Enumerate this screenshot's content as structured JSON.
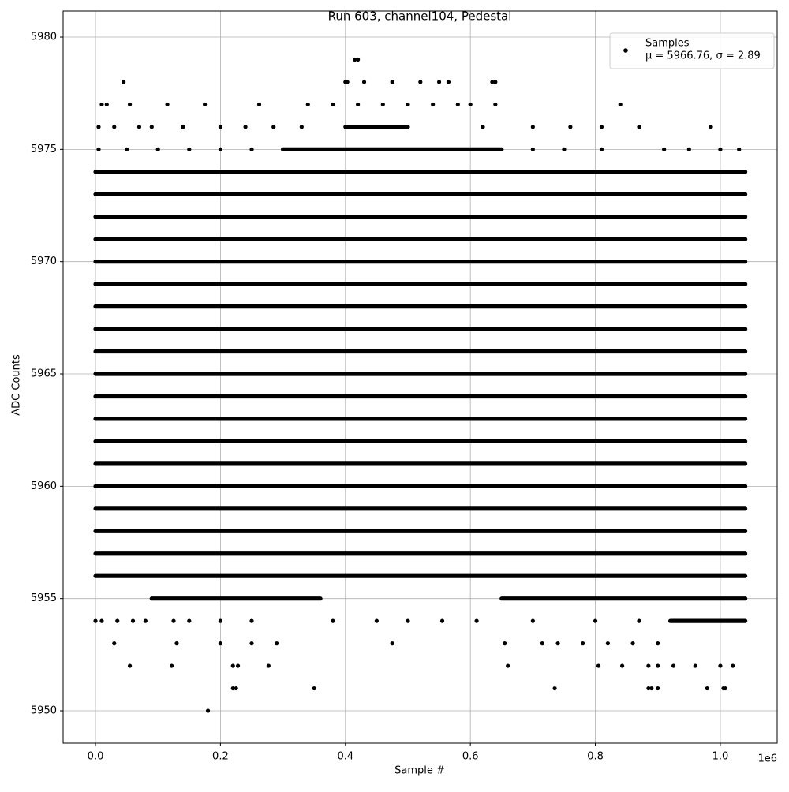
{
  "chart_data": {
    "type": "scatter",
    "title": "Run 603, channel104, Pedestal",
    "x_label": "Sample #",
    "y_label": "ADC Counts",
    "x_offset_label": "1e6",
    "xlim": [
      -51800,
      1091000
    ],
    "ylim": [
      5948.56,
      5981.16
    ],
    "xticks": [
      {
        "value": 0,
        "label": "0.0"
      },
      {
        "value": 200000,
        "label": "0.2"
      },
      {
        "value": 400000,
        "label": "0.4"
      },
      {
        "value": 600000,
        "label": "0.6"
      },
      {
        "value": 800000,
        "label": "0.8"
      },
      {
        "value": 1000000,
        "label": "1.0"
      }
    ],
    "yticks": [
      5950,
      5955,
      5960,
      5965,
      5970,
      5975,
      5980
    ],
    "grid": true,
    "legend": "upper right",
    "series": [
      {
        "name": "Samples",
        "stats": "μ = 5966.76, σ = 2.89",
        "color": "#000000",
        "x": [
          0,
          1040000,
          null,
          0,
          1040000,
          null,
          0,
          1040000,
          null,
          0,
          1040000,
          null,
          0,
          1040000,
          null,
          0,
          1040000,
          null,
          0,
          1040000,
          null,
          0,
          1040000,
          null,
          0,
          1040000,
          null,
          0,
          1040000,
          null,
          0,
          1040000,
          null,
          0,
          1040000,
          null,
          0,
          1040000,
          null,
          0,
          1040000,
          null,
          0,
          1040000,
          null,
          0,
          1040000,
          null,
          0,
          1040000,
          null,
          0,
          1040000,
          null,
          0,
          1040000,
          null,
          90000,
          360000,
          null,
          650000,
          1040000,
          null,
          300000,
          650000,
          null,
          400000,
          500000,
          null,
          920000,
          1040000,
          null,
          415000,
          null,
          420000,
          null,
          45000,
          null,
          400000,
          null,
          403000,
          null,
          430000,
          null,
          475000,
          null,
          520000,
          null,
          550000,
          null,
          565000,
          null,
          635000,
          null,
          640000,
          null,
          10000,
          null,
          18000,
          null,
          55000,
          null,
          115000,
          null,
          175000,
          null,
          262000,
          null,
          340000,
          null,
          380000,
          null,
          420000,
          null,
          460000,
          null,
          500000,
          null,
          540000,
          null,
          580000,
          null,
          600000,
          null,
          640000,
          null,
          840000,
          null,
          5000,
          null,
          30000,
          null,
          70000,
          null,
          90000,
          null,
          140000,
          null,
          200000,
          null,
          240000,
          null,
          285000,
          null,
          330000,
          null,
          620000,
          null,
          700000,
          null,
          760000,
          null,
          810000,
          null,
          870000,
          null,
          985000,
          null,
          5000,
          null,
          50000,
          null,
          100000,
          null,
          150000,
          null,
          200000,
          null,
          250000,
          null,
          700000,
          null,
          750000,
          null,
          810000,
          null,
          910000,
          null,
          950000,
          null,
          1000000,
          null,
          1030000,
          null,
          0,
          null,
          10000,
          null,
          35000,
          null,
          60000,
          null,
          80000,
          null,
          125000,
          null,
          150000,
          null,
          200000,
          null,
          250000,
          null,
          380000,
          null,
          450000,
          null,
          500000,
          null,
          555000,
          null,
          610000,
          null,
          700000,
          null,
          800000,
          null,
          870000,
          null,
          30000,
          null,
          130000,
          null,
          200000,
          null,
          250000,
          null,
          290000,
          null,
          475000,
          null,
          655000,
          null,
          715000,
          null,
          740000,
          null,
          780000,
          null,
          820000,
          null,
          860000,
          null,
          900000,
          null,
          55000,
          null,
          122000,
          null,
          220000,
          null,
          228000,
          null,
          277000,
          null,
          660000,
          null,
          805000,
          null,
          843000,
          null,
          885000,
          null,
          900000,
          null,
          925000,
          null,
          960000,
          null,
          1000000,
          null,
          1020000,
          null,
          220000,
          null,
          225000,
          null,
          350000,
          null,
          735000,
          null,
          885000,
          null,
          890000,
          null,
          900000,
          null,
          979000,
          null,
          1005000,
          null,
          1008000,
          null,
          180000
        ],
        "values": [
          5956,
          5956,
          null,
          5957,
          5957,
          null,
          5958,
          5958,
          null,
          5959,
          5959,
          null,
          5960,
          5960,
          null,
          5961,
          5961,
          null,
          5962,
          5962,
          null,
          5963,
          5963,
          null,
          5964,
          5964,
          null,
          5965,
          5965,
          null,
          5966,
          5966,
          null,
          5967,
          5967,
          null,
          5968,
          5968,
          null,
          5969,
          5969,
          null,
          5970,
          5970,
          null,
          5971,
          5971,
          null,
          5972,
          5972,
          null,
          5973,
          5973,
          null,
          5974,
          5974,
          null,
          5955,
          5955,
          null,
          5955,
          5955,
          null,
          5975,
          5975,
          null,
          5976,
          5976,
          null,
          5954,
          5954,
          null,
          5979,
          null,
          5979,
          null,
          5978,
          null,
          5978,
          null,
          5978,
          null,
          5978,
          null,
          5978,
          null,
          5978,
          null,
          5978,
          null,
          5978,
          null,
          5978,
          null,
          5978,
          null,
          5977,
          null,
          5977,
          null,
          5977,
          null,
          5977,
          null,
          5977,
          null,
          5977,
          null,
          5977,
          null,
          5977,
          null,
          5977,
          null,
          5977,
          null,
          5977,
          null,
          5977,
          null,
          5977,
          null,
          5977,
          null,
          5977,
          null,
          5977,
          null,
          5976,
          null,
          5976,
          null,
          5976,
          null,
          5976,
          null,
          5976,
          null,
          5976,
          null,
          5976,
          null,
          5976,
          null,
          5976,
          null,
          5976,
          null,
          5976,
          null,
          5976,
          null,
          5976,
          null,
          5976,
          null,
          5976,
          null,
          5975,
          null,
          5975,
          null,
          5975,
          null,
          5975,
          null,
          5975,
          null,
          5975,
          null,
          5975,
          null,
          5975,
          null,
          5975,
          null,
          5975,
          null,
          5975,
          null,
          5975,
          null,
          5975,
          null,
          5954,
          null,
          5954,
          null,
          5954,
          null,
          5954,
          null,
          5954,
          null,
          5954,
          null,
          5954,
          null,
          5954,
          null,
          5954,
          null,
          5954,
          null,
          5954,
          null,
          5954,
          null,
          5954,
          null,
          5954,
          null,
          5954,
          null,
          5954,
          null,
          5954,
          null,
          5953,
          null,
          5953,
          null,
          5953,
          null,
          5953,
          null,
          5953,
          null,
          5953,
          null,
          5953,
          null,
          5953,
          null,
          5953,
          null,
          5953,
          null,
          5953,
          null,
          5953,
          null,
          5953,
          null,
          5952,
          null,
          5952,
          null,
          5952,
          null,
          5952,
          null,
          5952,
          null,
          5952,
          null,
          5952,
          null,
          5952,
          null,
          5952,
          null,
          5952,
          null,
          5952,
          null,
          5952,
          null,
          5952,
          null,
          5952,
          null,
          5951,
          null,
          5951,
          null,
          5951,
          null,
          5951,
          null,
          5951,
          null,
          5951,
          null,
          5951,
          null,
          5951,
          null,
          5951,
          null,
          5951,
          null,
          5950
        ]
      }
    ]
  }
}
